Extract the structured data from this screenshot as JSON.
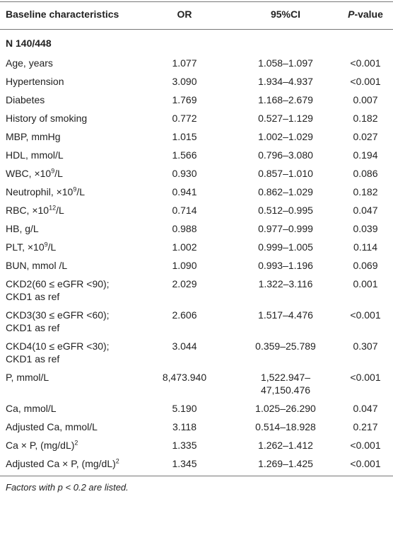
{
  "table": {
    "header": [
      "Baseline characteristics",
      "OR",
      "95%CI",
      [
        {
          "text": "P",
          "style": "italic"
        },
        {
          "text": "-value"
        }
      ]
    ],
    "group": "N 140/448",
    "rows": [
      [
        "Age, years",
        "1.077",
        "1.058–1.097",
        "<0.001"
      ],
      [
        "Hypertension",
        "3.090",
        "1.934–4.937",
        "<0.001"
      ],
      [
        "Diabetes",
        "1.769",
        "1.168–2.679",
        "0.007"
      ],
      [
        "History of smoking",
        "0.772",
        "0.527–1.129",
        "0.182"
      ],
      [
        "MBP, mmHg",
        "1.015",
        "1.002–1.029",
        "0.027"
      ],
      [
        "HDL, mmol/L",
        "1.566",
        "0.796–3.080",
        "0.194"
      ],
      [
        [
          {
            "text": "WBC, ×10"
          },
          {
            "text": "9",
            "style": "sup"
          },
          {
            "text": "/L"
          }
        ],
        "0.930",
        "0.857–1.010",
        "0.086"
      ],
      [
        [
          {
            "text": "Neutrophil, ×10"
          },
          {
            "text": "9",
            "style": "sup"
          },
          {
            "text": "/L"
          }
        ],
        "0.941",
        "0.862–1.029",
        "0.182"
      ],
      [
        [
          {
            "text": "RBC, ×10"
          },
          {
            "text": "12",
            "style": "sup"
          },
          {
            "text": "/L"
          }
        ],
        "0.714",
        "0.512–0.995",
        "0.047"
      ],
      [
        "HB, g/L",
        "0.988",
        "0.977–0.999",
        "0.039"
      ],
      [
        [
          {
            "text": "PLT, ×10"
          },
          {
            "text": "9",
            "style": "sup"
          },
          {
            "text": "/L"
          }
        ],
        "1.002",
        "0.999–1.005",
        "0.114"
      ],
      [
        "BUN, mmol /L",
        "1.090",
        "0.993–1.196",
        "0.069"
      ],
      [
        "CKD2(60 ≤ eGFR <90); CKD1 as ref",
        "2.029",
        "1.322–3.116",
        "0.001"
      ],
      [
        "CKD3(30 ≤ eGFR <60); CKD1 as ref",
        "2.606",
        "1.517–4.476",
        "<0.001"
      ],
      [
        "CKD4(10 ≤ eGFR <30); CKD1 as ref",
        "3.044",
        "0.359–25.789",
        "0.307"
      ],
      [
        "P, mmol/L",
        "8,473.940",
        "1,522.947–47,150.476",
        "<0.001"
      ],
      [
        "Ca, mmol/L",
        "5.190",
        "1.025–26.290",
        "0.047"
      ],
      [
        "Adjusted Ca, mmol/L",
        "3.118",
        "0.514–18.928",
        "0.217"
      ],
      [
        [
          {
            "text": "Ca × P, (mg/dL)"
          },
          {
            "text": "2",
            "style": "sup"
          }
        ],
        "1.335",
        "1.262–1.412",
        "<0.001"
      ],
      [
        [
          {
            "text": "Adjusted Ca × P, (mg/dL)"
          },
          {
            "text": "2",
            "style": "sup"
          }
        ],
        "1.345",
        "1.269–1.425",
        "<0.001"
      ]
    ],
    "footnote": "Factors with p < 0.2 are listed."
  }
}
